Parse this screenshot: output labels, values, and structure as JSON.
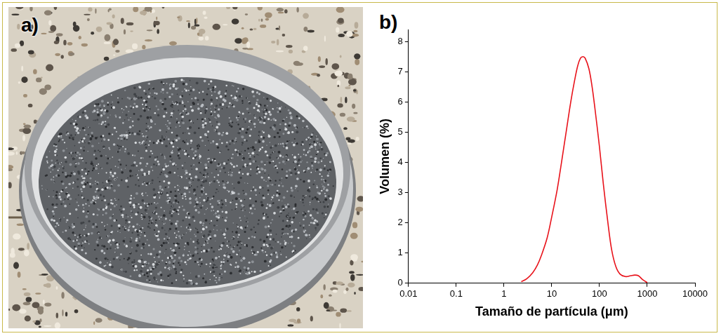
{
  "panel_labels": [
    "a)",
    "b)"
  ],
  "chart_data": {
    "type": "line",
    "x_label": "Tamaño de partícula (μm)",
    "y_label": "Volumen (%)",
    "x": [
      2.3,
      3,
      4,
      5,
      6,
      8,
      10,
      13,
      16,
      20,
      25,
      30,
      35,
      40,
      45,
      50,
      60,
      70,
      80,
      100,
      120,
      150,
      180,
      220,
      270,
      350,
      450,
      550,
      650,
      800,
      1000
    ],
    "values": [
      0.05,
      0.15,
      0.35,
      0.6,
      0.9,
      1.5,
      2.2,
      3.1,
      4.0,
      5.0,
      6.0,
      6.7,
      7.2,
      7.45,
      7.5,
      7.45,
      7.1,
      6.5,
      5.8,
      4.5,
      3.3,
      2.0,
      1.1,
      0.55,
      0.3,
      0.22,
      0.25,
      0.27,
      0.25,
      0.12,
      0.02
    ],
    "color": "#e8121a",
    "log": "x",
    "xlim": [
      0.01,
      10000
    ],
    "xticks": [
      0.01,
      0.1,
      1,
      10,
      100,
      1000,
      10000
    ],
    "ylim": [
      0,
      8.4
    ],
    "yticks": [
      0,
      1,
      2,
      3,
      4,
      5,
      6,
      7,
      8
    ],
    "grid": false,
    "marker": "none",
    "line_style": "solid"
  }
}
